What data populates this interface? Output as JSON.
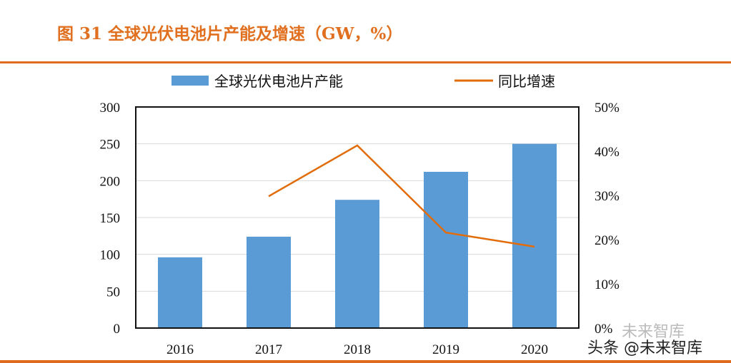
{
  "title": "图 31 全球光伏电池片产能及增速（GW，%）",
  "watermark": "头条 @未来智库",
  "watermark_faint": "未来智库",
  "chart_data": {
    "type": "bar+line",
    "categories": [
      "2016",
      "2017",
      "2018",
      "2019",
      "2020"
    ],
    "series": [
      {
        "name": "全球光伏电池片产能",
        "type": "bar",
        "axis": "left",
        "color": "#5B9BD5",
        "values": [
          96,
          124,
          174,
          212,
          250
        ]
      },
      {
        "name": "同比增速",
        "type": "line",
        "axis": "right",
        "color": "#E36C0A",
        "values": [
          null,
          29.8,
          41.3,
          21.6,
          18.4
        ]
      }
    ],
    "y_left": {
      "range": [
        0,
        300
      ],
      "ticks": [
        "0",
        "50",
        "100",
        "150",
        "200",
        "250",
        "300"
      ]
    },
    "y_right": {
      "range": [
        0,
        50
      ],
      "ticks": [
        "0%",
        "10%",
        "20%",
        "30%",
        "40%",
        "50%"
      ]
    },
    "grid": true,
    "legend": "top"
  }
}
